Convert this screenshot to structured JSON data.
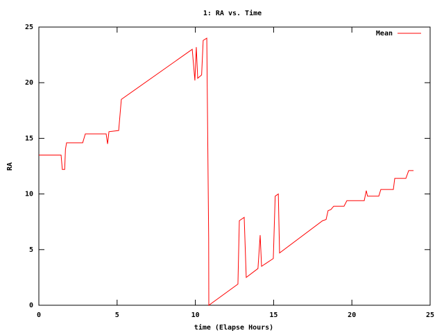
{
  "chart_data": {
    "type": "line",
    "title": "1: RA vs. Time",
    "x_label": "time (Elapse Hours)",
    "y_label": "RA",
    "x": [
      0,
      1.42,
      1.5,
      1.65,
      1.7,
      1.77,
      2.8,
      2.97,
      4.3,
      4.39,
      4.48,
      5.1,
      5.27,
      9.8,
      9.97,
      10.06,
      10.15,
      10.4,
      10.5,
      10.73,
      10.77,
      10.85,
      10.86,
      12.72,
      12.81,
      13.12,
      13.25,
      14.0,
      14.14,
      14.23,
      14.98,
      15.1,
      15.3,
      15.38,
      18.13,
      18.35,
      18.48,
      18.66,
      18.84,
      19.5,
      19.68,
      20.79,
      20.92,
      21.0,
      21.72,
      21.85,
      22.65,
      22.74,
      23.45,
      23.63,
      23.94
    ],
    "series": [
      {
        "name": "Mean",
        "color": "#ff0000",
        "values": [
          13.5,
          13.5,
          12.2,
          12.2,
          14.0,
          14.6,
          14.6,
          15.4,
          15.4,
          14.5,
          15.6,
          15.7,
          18.5,
          23.0,
          20.2,
          23.2,
          20.4,
          20.7,
          23.8,
          24.0,
          18.0,
          6.0,
          0,
          1.9,
          7.6,
          7.9,
          2.5,
          3.3,
          6.3,
          3.5,
          4.2,
          9.8,
          10.0,
          4.7,
          7.6,
          7.7,
          8.5,
          8.6,
          8.9,
          8.9,
          9.4,
          9.4,
          10.3,
          9.8,
          9.8,
          10.4,
          10.4,
          11.4,
          11.4,
          12.1,
          12.1
        ]
      }
    ],
    "xlim": [
      0,
      25
    ],
    "ylim": [
      0,
      25
    ],
    "xticks": [
      0,
      5,
      10,
      15,
      20,
      25
    ],
    "yticks": [
      0,
      5,
      10,
      15,
      20,
      25
    ],
    "legend": "top-right"
  }
}
